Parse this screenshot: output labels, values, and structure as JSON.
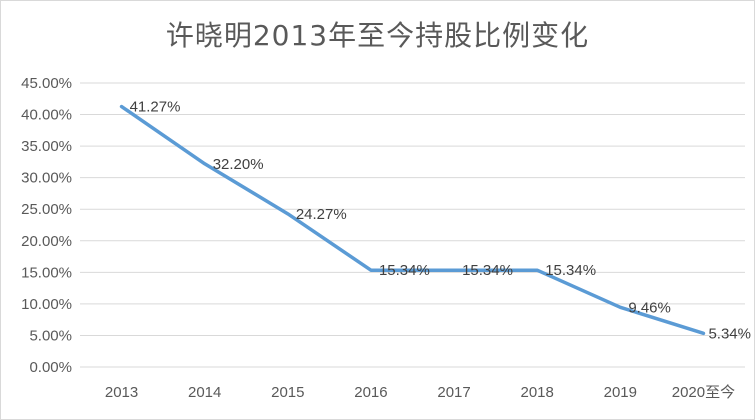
{
  "chart_data": {
    "type": "line",
    "title": "许晓明2013年至今持股比例变化",
    "categories": [
      "2013",
      "2014",
      "2015",
      "2016",
      "2017",
      "2018",
      "2019",
      "2020至今"
    ],
    "series": [
      {
        "values": [
          41.27,
          32.2,
          24.27,
          15.34,
          15.34,
          15.34,
          9.46,
          5.34
        ],
        "data_labels": [
          "41.27%",
          "32.20%",
          "24.27%",
          "15.34%",
          "15.34%",
          "15.34%",
          "9.46%",
          "5.34%"
        ],
        "color": "#5b9bd5"
      }
    ],
    "y_ticks": [
      "0.00%",
      "5.00%",
      "10.00%",
      "15.00%",
      "20.00%",
      "25.00%",
      "30.00%",
      "35.00%",
      "40.00%",
      "45.00%"
    ],
    "ylim": [
      0,
      45
    ],
    "y_unit": "%",
    "grid": true,
    "legend": "none",
    "gridline_color": "#d9d9d9"
  }
}
